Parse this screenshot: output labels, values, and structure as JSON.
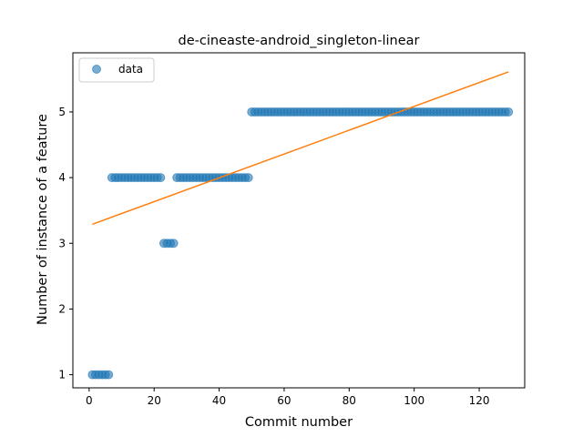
{
  "chart_data": {
    "type": "scatter",
    "title": "de-cineaste-android_singleton-linear",
    "xlabel": "Commit number",
    "ylabel": "Number of instance of a feature",
    "xlim": [
      -5,
      134
    ],
    "ylim": [
      0.8,
      5.9
    ],
    "xticks": [
      0,
      20,
      40,
      60,
      80,
      100,
      120
    ],
    "yticks": [
      1,
      2,
      3,
      4,
      5
    ],
    "grid": false,
    "legend_position": "top-left",
    "series": [
      {
        "name": "data",
        "kind": "scatter",
        "color": "#1f77b4",
        "points": [
          {
            "x": 1,
            "y": 1
          },
          {
            "x": 2,
            "y": 1
          },
          {
            "x": 3,
            "y": 1
          },
          {
            "x": 4,
            "y": 1
          },
          {
            "x": 5,
            "y": 1
          },
          {
            "x": 6,
            "y": 1
          },
          {
            "x": 7,
            "y": 4
          },
          {
            "x": 8,
            "y": 4
          },
          {
            "x": 9,
            "y": 4
          },
          {
            "x": 10,
            "y": 4
          },
          {
            "x": 11,
            "y": 4
          },
          {
            "x": 12,
            "y": 4
          },
          {
            "x": 13,
            "y": 4
          },
          {
            "x": 14,
            "y": 4
          },
          {
            "x": 15,
            "y": 4
          },
          {
            "x": 16,
            "y": 4
          },
          {
            "x": 17,
            "y": 4
          },
          {
            "x": 18,
            "y": 4
          },
          {
            "x": 19,
            "y": 4
          },
          {
            "x": 20,
            "y": 4
          },
          {
            "x": 21,
            "y": 4
          },
          {
            "x": 22,
            "y": 4
          },
          {
            "x": 23,
            "y": 3
          },
          {
            "x": 24,
            "y": 3
          },
          {
            "x": 25,
            "y": 3
          },
          {
            "x": 26,
            "y": 3
          },
          {
            "x": 27,
            "y": 4
          },
          {
            "x": 28,
            "y": 4
          },
          {
            "x": 29,
            "y": 4
          },
          {
            "x": 30,
            "y": 4
          },
          {
            "x": 31,
            "y": 4
          },
          {
            "x": 32,
            "y": 4
          },
          {
            "x": 33,
            "y": 4
          },
          {
            "x": 34,
            "y": 4
          },
          {
            "x": 35,
            "y": 4
          },
          {
            "x": 36,
            "y": 4
          },
          {
            "x": 37,
            "y": 4
          },
          {
            "x": 38,
            "y": 4
          },
          {
            "x": 39,
            "y": 4
          },
          {
            "x": 40,
            "y": 4
          },
          {
            "x": 41,
            "y": 4
          },
          {
            "x": 42,
            "y": 4
          },
          {
            "x": 43,
            "y": 4
          },
          {
            "x": 44,
            "y": 4
          },
          {
            "x": 45,
            "y": 4
          },
          {
            "x": 46,
            "y": 4
          },
          {
            "x": 47,
            "y": 4
          },
          {
            "x": 48,
            "y": 4
          },
          {
            "x": 49,
            "y": 4
          },
          {
            "x": 50,
            "y": 5
          },
          {
            "x": 51,
            "y": 5
          },
          {
            "x": 52,
            "y": 5
          },
          {
            "x": 53,
            "y": 5
          },
          {
            "x": 54,
            "y": 5
          },
          {
            "x": 55,
            "y": 5
          },
          {
            "x": 56,
            "y": 5
          },
          {
            "x": 57,
            "y": 5
          },
          {
            "x": 58,
            "y": 5
          },
          {
            "x": 59,
            "y": 5
          },
          {
            "x": 60,
            "y": 5
          },
          {
            "x": 61,
            "y": 5
          },
          {
            "x": 62,
            "y": 5
          },
          {
            "x": 63,
            "y": 5
          },
          {
            "x": 64,
            "y": 5
          },
          {
            "x": 65,
            "y": 5
          },
          {
            "x": 66,
            "y": 5
          },
          {
            "x": 67,
            "y": 5
          },
          {
            "x": 68,
            "y": 5
          },
          {
            "x": 69,
            "y": 5
          },
          {
            "x": 70,
            "y": 5
          },
          {
            "x": 71,
            "y": 5
          },
          {
            "x": 72,
            "y": 5
          },
          {
            "x": 73,
            "y": 5
          },
          {
            "x": 74,
            "y": 5
          },
          {
            "x": 75,
            "y": 5
          },
          {
            "x": 76,
            "y": 5
          },
          {
            "x": 77,
            "y": 5
          },
          {
            "x": 78,
            "y": 5
          },
          {
            "x": 79,
            "y": 5
          },
          {
            "x": 80,
            "y": 5
          },
          {
            "x": 81,
            "y": 5
          },
          {
            "x": 82,
            "y": 5
          },
          {
            "x": 83,
            "y": 5
          },
          {
            "x": 84,
            "y": 5
          },
          {
            "x": 85,
            "y": 5
          },
          {
            "x": 86,
            "y": 5
          },
          {
            "x": 87,
            "y": 5
          },
          {
            "x": 88,
            "y": 5
          },
          {
            "x": 89,
            "y": 5
          },
          {
            "x": 90,
            "y": 5
          },
          {
            "x": 91,
            "y": 5
          },
          {
            "x": 92,
            "y": 5
          },
          {
            "x": 93,
            "y": 5
          },
          {
            "x": 94,
            "y": 5
          },
          {
            "x": 95,
            "y": 5
          },
          {
            "x": 96,
            "y": 5
          },
          {
            "x": 97,
            "y": 5
          },
          {
            "x": 98,
            "y": 5
          },
          {
            "x": 99,
            "y": 5
          },
          {
            "x": 100,
            "y": 5
          },
          {
            "x": 101,
            "y": 5
          },
          {
            "x": 102,
            "y": 5
          },
          {
            "x": 103,
            "y": 5
          },
          {
            "x": 104,
            "y": 5
          },
          {
            "x": 105,
            "y": 5
          },
          {
            "x": 106,
            "y": 5
          },
          {
            "x": 107,
            "y": 5
          },
          {
            "x": 108,
            "y": 5
          },
          {
            "x": 109,
            "y": 5
          },
          {
            "x": 110,
            "y": 5
          },
          {
            "x": 111,
            "y": 5
          },
          {
            "x": 112,
            "y": 5
          },
          {
            "x": 113,
            "y": 5
          },
          {
            "x": 114,
            "y": 5
          },
          {
            "x": 115,
            "y": 5
          },
          {
            "x": 116,
            "y": 5
          },
          {
            "x": 117,
            "y": 5
          },
          {
            "x": 118,
            "y": 5
          },
          {
            "x": 119,
            "y": 5
          },
          {
            "x": 120,
            "y": 5
          },
          {
            "x": 121,
            "y": 5
          },
          {
            "x": 122,
            "y": 5
          },
          {
            "x": 123,
            "y": 5
          },
          {
            "x": 124,
            "y": 5
          },
          {
            "x": 125,
            "y": 5
          },
          {
            "x": 126,
            "y": 5
          },
          {
            "x": 127,
            "y": 5
          },
          {
            "x": 128,
            "y": 5
          },
          {
            "x": 129,
            "y": 5
          }
        ]
      },
      {
        "kind": "line",
        "color": "#ff7f0e",
        "points": [
          {
            "x": 1,
            "y": 3.29
          },
          {
            "x": 129,
            "y": 5.61
          }
        ]
      }
    ]
  }
}
